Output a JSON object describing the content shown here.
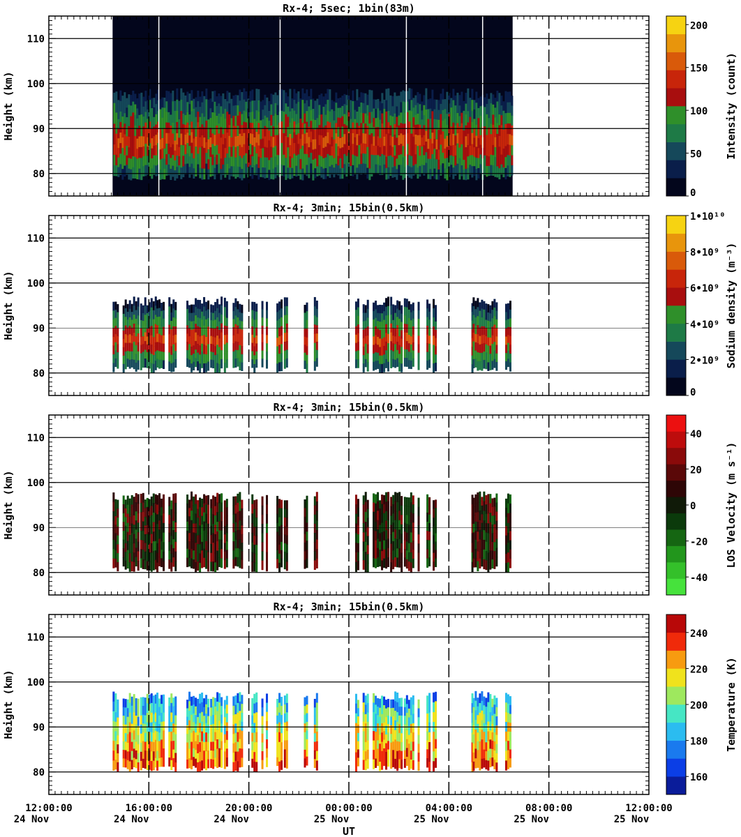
{
  "chart_data": [
    {
      "type": "heatmap",
      "title": "Rx-4;  5sec; 1bin(83m)",
      "ylabel": "Height (km)",
      "ylim": [
        75,
        115
      ],
      "yticks": [
        "80",
        "90",
        "100",
        "110"
      ],
      "colorbar_label": "Intensity (count)",
      "colorbar_range": [
        0,
        210
      ],
      "colorbar_ticks": [
        "0",
        "50",
        "100",
        "150",
        "200"
      ],
      "colormap": [
        "#03061c",
        "#0a1e4a",
        "#15485a",
        "#1e7a46",
        "#2f8f2a",
        "#a80e0e",
        "#c8250a",
        "#d95a0a",
        "#e8950c",
        "#f6d312"
      ],
      "data_intervals_hours": [
        [
          2.55,
          18.55
        ]
      ],
      "layer_km": [
        80,
        96
      ],
      "peak_km": 89
    },
    {
      "type": "heatmap",
      "title": "Rx-4; 3min; 15bin(0.5km)",
      "ylabel": "Height (km)",
      "ylim": [
        75,
        115
      ],
      "yticks": [
        "80",
        "90",
        "100",
        "110"
      ],
      "colorbar_label": "Sodium density (m⁻³)",
      "colorbar_range": [
        0,
        10000000000.0
      ],
      "colorbar_ticks": [
        "0",
        "2•10⁹",
        "4•10⁹",
        "6•10⁹",
        "8•10⁹",
        "1•10¹⁰"
      ],
      "colormap": [
        "#03061c",
        "#0a1e4a",
        "#15485a",
        "#1e7a46",
        "#2f8f2a",
        "#a80e0e",
        "#c8250a",
        "#d95a0a",
        "#e8950c",
        "#f6d312"
      ],
      "layer_km": [
        81,
        97
      ],
      "peak_km": 89
    },
    {
      "type": "heatmap",
      "title": "Rx-4; 3min; 15bin(0.5km)",
      "ylabel": "Height (km)",
      "ylim": [
        75,
        115
      ],
      "yticks": [
        "80",
        "90",
        "100",
        "110"
      ],
      "colorbar_label": "LOS Velocity (m s⁻¹)",
      "colorbar_range": [
        -50,
        50
      ],
      "colorbar_ticks": [
        "-40",
        "-20",
        "0",
        "20",
        "40"
      ],
      "colormap": [
        "#46e23c",
        "#34c02a",
        "#22961c",
        "#156612",
        "#0b3a0b",
        "#101a08",
        "#2e0606",
        "#5a0808",
        "#8a0a0a",
        "#bd0c0c",
        "#ec1010"
      ],
      "layer_km": [
        81,
        98
      ]
    },
    {
      "type": "heatmap",
      "title": "Rx-4; 3min; 15bin(0.5km)",
      "ylabel": "Height (km)",
      "xlabel": "UT",
      "ylim": [
        75,
        115
      ],
      "yticks": [
        "80",
        "90",
        "100",
        "110"
      ],
      "colorbar_label": "Temperature (K)",
      "colorbar_range": [
        150,
        250
      ],
      "colorbar_ticks": [
        "160",
        "180",
        "200",
        "220",
        "240"
      ],
      "colormap": [
        "#0a1c9a",
        "#0b3ee6",
        "#1a7aee",
        "#2bbcf0",
        "#46e6c4",
        "#9ee85e",
        "#f0e21c",
        "#f79b10",
        "#f02a0a",
        "#b80808"
      ],
      "layer_km": [
        81,
        98
      ]
    }
  ],
  "x_axis": {
    "range_hours": [
      0,
      24
    ],
    "ticks": [
      {
        "time": "12:00:00",
        "date": "24 Nov"
      },
      {
        "time": "16:00:00",
        "date": "24 Nov"
      },
      {
        "time": "20:00:00",
        "date": "24 Nov"
      },
      {
        "time": "00:00:00",
        "date": "25 Nov"
      },
      {
        "time": "04:00:00",
        "date": "25 Nov"
      },
      {
        "time": "08:00:00",
        "date": "25 Nov"
      },
      {
        "time": "12:00:00",
        "date": "25 Nov"
      }
    ]
  },
  "profile_intervals_hours": [
    [
      2.55,
      2.8
    ],
    [
      2.95,
      3.55
    ],
    [
      3.65,
      4.25
    ],
    [
      4.3,
      4.6
    ],
    [
      4.78,
      5.05
    ],
    [
      5.5,
      6.35
    ],
    [
      6.45,
      6.95
    ],
    [
      7.0,
      7.15
    ],
    [
      7.35,
      7.75
    ],
    [
      8.1,
      8.3
    ],
    [
      8.5,
      8.55
    ],
    [
      8.68,
      8.73
    ],
    [
      9.1,
      9.3
    ],
    [
      9.4,
      9.55
    ],
    [
      10.2,
      10.35
    ],
    [
      10.6,
      10.7
    ],
    [
      12.25,
      12.4
    ],
    [
      12.55,
      12.75
    ],
    [
      12.95,
      13.55
    ],
    [
      13.65,
      14.1
    ],
    [
      14.2,
      14.55
    ],
    [
      14.75,
      14.8
    ],
    [
      15.1,
      15.2
    ],
    [
      15.35,
      15.5
    ],
    [
      16.9,
      16.95
    ],
    [
      16.95,
      17.95
    ],
    [
      18.25,
      18.45
    ]
  ]
}
